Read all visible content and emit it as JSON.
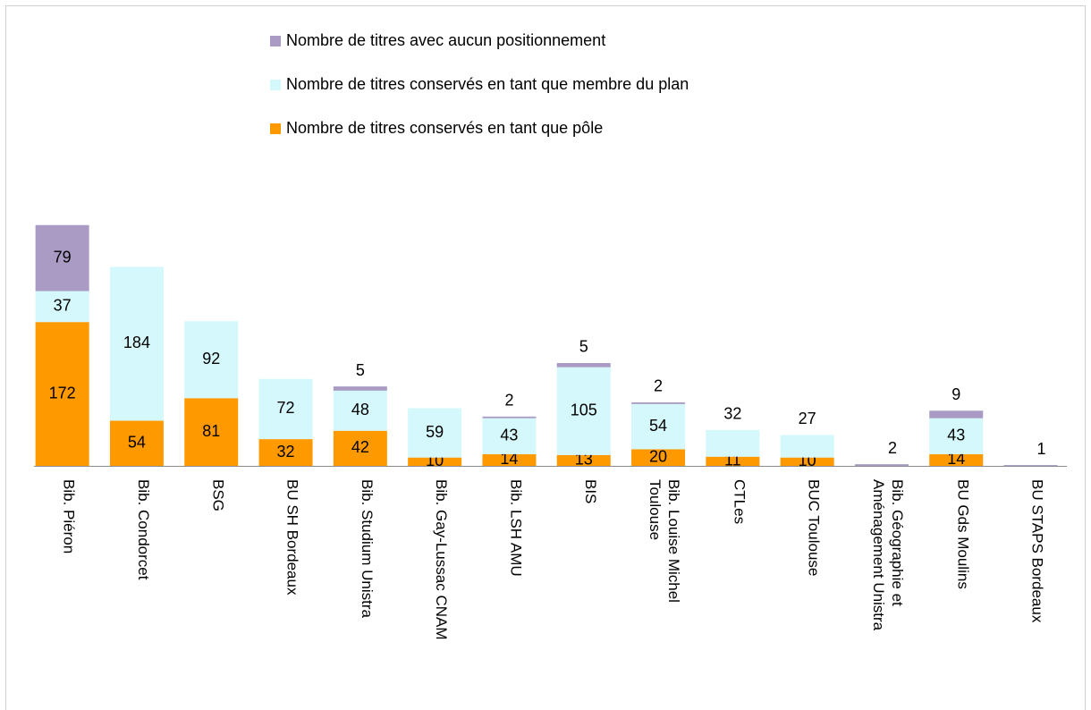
{
  "chart_data": {
    "type": "stacked-bar",
    "categories": [
      "Bib. Piéron",
      "Bib. Condorcet",
      "BSG",
      "BU SH Bordeaux",
      "Bib. Studium Unistra",
      "Bib. Gay-Lussac CNAM",
      "Bib. LSH AMU",
      "BIS",
      "Bib. Louise Michel\nToulouse",
      "CTLes",
      "BUC Toulouse",
      "Bib. Géographie et\nAménagement Unistra",
      "BU Gds Moulins",
      "BU STAPS Bordeaux"
    ],
    "series": [
      {
        "name": "Nombre de titres conservés en tant que pôle",
        "color": "#ff9900",
        "values": [
          172,
          54,
          81,
          32,
          42,
          10,
          14,
          13,
          20,
          11,
          10,
          null,
          14,
          null
        ]
      },
      {
        "name": "Nombre de titres conservés en tant que membre du plan",
        "color": "#d4f8fb",
        "values": [
          37,
          184,
          92,
          72,
          48,
          59,
          43,
          105,
          54,
          32,
          27,
          null,
          43,
          null
        ]
      },
      {
        "name": "Nombre de titres avec aucun positionnement",
        "color": "#a99bc4",
        "values": [
          79,
          null,
          null,
          null,
          5,
          null,
          2,
          5,
          2,
          null,
          null,
          2,
          9,
          1
        ]
      }
    ],
    "legend": "top"
  }
}
